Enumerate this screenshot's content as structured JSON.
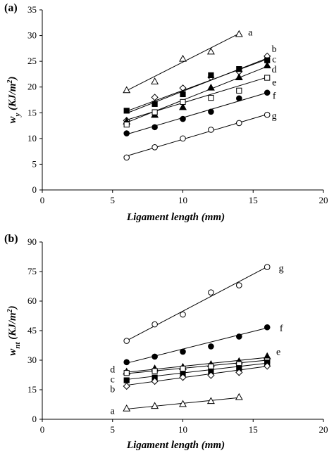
{
  "chart_data": [
    {
      "type": "scatter",
      "panel_label": "(a)",
      "xlabel": "Ligament length (mm)",
      "ylabel_parts": [
        "w",
        "y",
        " (KJ/m",
        "2",
        ")"
      ],
      "xlim": [
        0,
        20
      ],
      "ylim": [
        0,
        35
      ],
      "xticks": [
        0,
        5,
        10,
        15,
        20
      ],
      "yticks": [
        0,
        5,
        10,
        15,
        20,
        25,
        30,
        35
      ],
      "grid": false,
      "series": [
        {
          "name": "a",
          "marker": "triangle-open",
          "x": [
            6,
            8,
            10,
            12,
            14
          ],
          "y": [
            19.4,
            21.1,
            25.5,
            26.9,
            30.3
          ],
          "fit": [
            [
              6,
              19.3
            ],
            [
              14,
              30.4
            ]
          ]
        },
        {
          "name": "b",
          "marker": "diamond-open",
          "x": [
            6,
            8,
            10,
            12,
            14,
            16
          ],
          "y": [
            13.5,
            18.0,
            19.8,
            21.9,
            23.0,
            26.0
          ],
          "fit": [
            [
              6,
              14.9
            ],
            [
              16,
              25.6
            ]
          ]
        },
        {
          "name": "c",
          "marker": "square-filled",
          "x": [
            6,
            8,
            10,
            12,
            14,
            16
          ],
          "y": [
            15.4,
            16.7,
            18.6,
            22.3,
            23.5,
            25.2
          ],
          "fit": [
            [
              6,
              15.3
            ],
            [
              16,
              25.4
            ]
          ]
        },
        {
          "name": "d",
          "marker": "triangle-filled",
          "x": [
            6,
            8,
            10,
            12,
            14,
            16
          ],
          "y": [
            13.3,
            14.6,
            16.1,
            19.9,
            21.9,
            24.2
          ],
          "fit": [
            [
              6,
              13.1
            ],
            [
              16,
              24.0
            ]
          ]
        },
        {
          "name": "e",
          "marker": "square-open",
          "x": [
            6,
            8,
            10,
            12,
            14,
            16
          ],
          "y": [
            12.7,
            15.1,
            17.1,
            17.9,
            19.3,
            21.8
          ],
          "fit": [
            [
              6,
              13.6
            ],
            [
              16,
              21.9
            ]
          ]
        },
        {
          "name": "f",
          "marker": "circle-filled",
          "x": [
            6,
            8,
            10,
            12,
            14,
            16
          ],
          "y": [
            11.0,
            12.2,
            13.8,
            15.2,
            17.8,
            18.9
          ],
          "fit": [
            [
              6,
              10.8
            ],
            [
              16,
              18.9
            ]
          ]
        },
        {
          "name": "g",
          "marker": "circle-open",
          "x": [
            6,
            8,
            10,
            12,
            14,
            16
          ],
          "y": [
            6.3,
            8.3,
            10.0,
            11.7,
            13.0,
            14.6
          ],
          "fit": [
            [
              6,
              6.6
            ],
            [
              16,
              14.7
            ]
          ]
        }
      ],
      "series_labels": [
        {
          "text": "a",
          "x": 14.8,
          "y": 30.7
        },
        {
          "text": "b",
          "x": 16.5,
          "y": 27.5
        },
        {
          "text": "c",
          "x": 16.5,
          "y": 25.5
        },
        {
          "text": "d",
          "x": 16.5,
          "y": 23.5
        },
        {
          "text": "e",
          "x": 16.5,
          "y": 21.0
        },
        {
          "text": "f",
          "x": 16.5,
          "y": 18.4
        },
        {
          "text": "g",
          "x": 16.5,
          "y": 14.5
        }
      ]
    },
    {
      "type": "scatter",
      "panel_label": "(b)",
      "xlabel": "Ligament length (mm)",
      "ylabel_parts": [
        "w",
        "nt",
        " (KJ/m",
        "2",
        ")"
      ],
      "xlim": [
        0,
        20
      ],
      "ylim": [
        0,
        90
      ],
      "xticks": [
        0,
        5,
        10,
        15,
        20
      ],
      "yticks": [
        0,
        15,
        30,
        45,
        60,
        75,
        90
      ],
      "grid": false,
      "series": [
        {
          "name": "g",
          "marker": "circle-open",
          "x": [
            6,
            8,
            10,
            12,
            14,
            16
          ],
          "y": [
            39.8,
            48.2,
            53.2,
            64.4,
            68.0,
            77.3
          ],
          "fit": [
            [
              6,
              39.9
            ],
            [
              16,
              77.4
            ]
          ]
        },
        {
          "name": "f",
          "marker": "circle-filled",
          "x": [
            6,
            8,
            10,
            12,
            14,
            16
          ],
          "y": [
            29.0,
            31.8,
            34.3,
            37.0,
            42.0,
            46.7
          ],
          "fit": [
            [
              6,
              28.5
            ],
            [
              16,
              46.4
            ]
          ]
        },
        {
          "name": "e",
          "marker": "triangle-filled",
          "x": [
            6,
            8,
            10,
            12,
            14,
            16
          ],
          "y": [
            24.2,
            25.8,
            26.6,
            28.0,
            29.5,
            32.0
          ],
          "fit": [
            [
              6,
              23.9
            ],
            [
              16,
              31.4
            ]
          ]
        },
        {
          "name": "d",
          "marker": "square-open",
          "x": [
            6,
            8,
            10,
            12,
            14,
            16
          ],
          "y": [
            23.5,
            24.5,
            25.7,
            26.8,
            28.0,
            29.8
          ],
          "fit": [
            [
              6,
              23.2
            ],
            [
              16,
              30.0
            ]
          ]
        },
        {
          "name": "c",
          "marker": "square-filled",
          "x": [
            6,
            8,
            10,
            12,
            14,
            16
          ],
          "y": [
            19.8,
            21.2,
            23.0,
            24.3,
            26.0,
            28.8
          ],
          "fit": [
            [
              6,
              20.2
            ],
            [
              16,
              28.5
            ]
          ]
        },
        {
          "name": "b",
          "marker": "diamond-open",
          "x": [
            6,
            8,
            10,
            12,
            14,
            16
          ],
          "y": [
            16.8,
            19.3,
            21.3,
            22.3,
            23.8,
            27.0
          ],
          "fit": [
            [
              6,
              17.3
            ],
            [
              16,
              26.9
            ]
          ]
        },
        {
          "name": "a",
          "marker": "triangle-open",
          "x": [
            6,
            8,
            10,
            12,
            14
          ],
          "y": [
            5.5,
            6.8,
            7.8,
            9.3,
            11.3
          ],
          "fit": [
            [
              6,
              5.2
            ],
            [
              14,
              11.0
            ]
          ]
        }
      ],
      "series_labels": [
        {
          "text": "g",
          "x": 17.0,
          "y": 77.0
        },
        {
          "text": "f",
          "x": 17.0,
          "y": 46.5
        },
        {
          "text": "e",
          "x": 16.8,
          "y": 34.5
        },
        {
          "text": "d",
          "x": 5.0,
          "y": 25.5
        },
        {
          "text": "c",
          "x": 5.0,
          "y": 20.5
        },
        {
          "text": "b",
          "x": 5.0,
          "y": 15.5
        },
        {
          "text": "a",
          "x": 5.0,
          "y": 4.5
        }
      ]
    }
  ]
}
